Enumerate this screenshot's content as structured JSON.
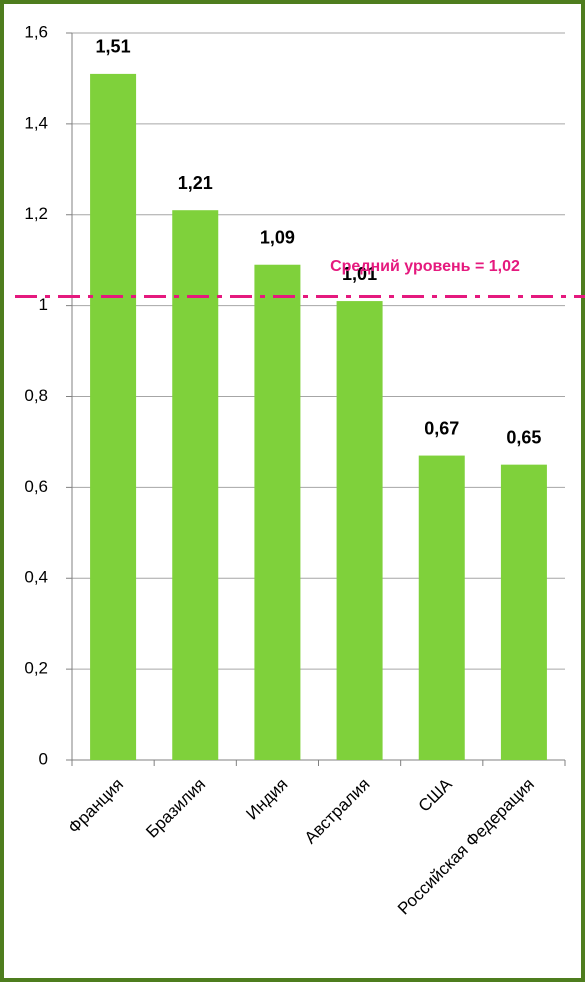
{
  "chart_data": {
    "type": "bar",
    "categories": [
      "Франция",
      "Бразилия",
      "Индия",
      "Австралия",
      "США",
      "Российская Федерация"
    ],
    "values": [
      1.51,
      1.21,
      1.09,
      1.01,
      0.67,
      0.65
    ],
    "value_labels": [
      "1,51",
      "1,21",
      "1,09",
      "1,01",
      "0,67",
      "0,65"
    ],
    "color": "#7fd13b",
    "ylim": [
      0,
      1.6
    ],
    "yticks": [
      0,
      {
        "value": 0.2,
        "label": "0,2"
      },
      {
        "value": 0.4,
        "label": "0,4"
      },
      {
        "value": 0.6,
        "label": "0,6"
      },
      {
        "value": 0.8,
        "label": "0,8"
      },
      1,
      {
        "value": 1.2,
        "label": "1,2"
      },
      {
        "value": 1.4,
        "label": "1,4"
      },
      {
        "value": 1.6,
        "label": "1,6"
      }
    ],
    "grid": true,
    "reference_line": {
      "value": 1.02,
      "label": "Средний уровень = 1,02",
      "color": "#e5197e"
    }
  }
}
